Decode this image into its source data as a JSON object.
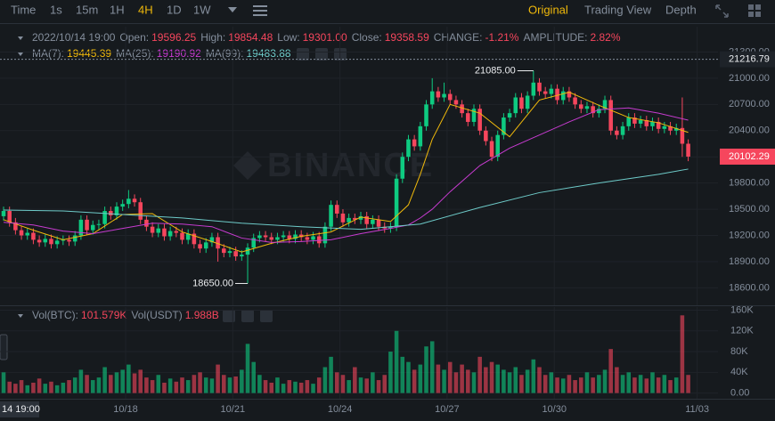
{
  "toolbar": {
    "intervals": [
      "Time",
      "1s",
      "15m",
      "1H",
      "4H",
      "1D",
      "1W"
    ],
    "active": "4H",
    "views": [
      "Original",
      "Trading View",
      "Depth"
    ],
    "active_view": "Original"
  },
  "watermark": "BINANCE",
  "crosshair_time": "14 19:00",
  "chart_data": [
    {
      "type": "candlestick",
      "legend": {
        "date": "2022/10/14 19:00",
        "value_color": "#f6465d",
        "items": [
          {
            "label": "Open:",
            "value": "19596.25"
          },
          {
            "label": "High:",
            "value": "19854.48"
          },
          {
            "label": "Low:",
            "value": "19301.00"
          },
          {
            "label": "Close:",
            "value": "19358.59"
          },
          {
            "label": "CHANGE:",
            "value": "-1.21%"
          },
          {
            "label": "AMPLITUDE:",
            "value": "2.82%"
          }
        ]
      },
      "up_color": "#0ecb81",
      "down_color": "#f6465d",
      "open": [
        19420,
        19480,
        19350,
        19260,
        19200,
        19230,
        19150,
        19120,
        19160,
        19100,
        19140,
        19150,
        19130,
        19200,
        19380,
        19260,
        19320,
        19330,
        19480,
        19430,
        19530,
        19560,
        19620,
        19580,
        19380,
        19300,
        19230,
        19280,
        19190,
        19250,
        19230,
        19150,
        19220,
        19100,
        19050,
        19120,
        19180,
        19050,
        19000,
        19020,
        18960,
        18980,
        19060,
        19170,
        19200,
        19180,
        19150,
        19180,
        19200,
        19160,
        19210,
        19180,
        19150,
        19190,
        19110,
        19300,
        19550,
        19450,
        19350,
        19400,
        19380,
        19420,
        19330,
        19380,
        19300,
        19280,
        19300,
        19850,
        20100,
        20300,
        20220,
        20450,
        20700,
        20850,
        20780,
        20820,
        20750,
        20700,
        20600,
        20500,
        20650,
        20400,
        20280,
        20100,
        20350,
        20550,
        20600,
        20780,
        20650,
        20800,
        20950,
        20850,
        20820,
        20880,
        20750,
        20850,
        20780,
        20700,
        20650,
        20680,
        20600,
        20650,
        20750,
        20400,
        20350,
        20450,
        20550,
        20480,
        20520,
        20450,
        20500,
        20420,
        20450,
        20400,
        20430,
        20250
      ],
      "high": [
        19530,
        19530,
        19400,
        19310,
        19280,
        19280,
        19200,
        19210,
        19210,
        19190,
        19200,
        19200,
        19250,
        19430,
        19430,
        19370,
        19380,
        19530,
        19530,
        19580,
        19610,
        19720,
        19670,
        19630,
        19430,
        19350,
        19330,
        19330,
        19300,
        19300,
        19280,
        19270,
        19270,
        19150,
        19170,
        19230,
        19230,
        19100,
        19070,
        19070,
        19030,
        19110,
        19220,
        19250,
        19250,
        19230,
        19230,
        19250,
        19250,
        19260,
        19260,
        19230,
        19240,
        19240,
        19350,
        19600,
        19600,
        19500,
        19450,
        19450,
        19470,
        19470,
        19430,
        19430,
        19350,
        19350,
        19900,
        20150,
        20350,
        20350,
        20500,
        20750,
        21000,
        20900,
        20950,
        20870,
        20800,
        20750,
        20650,
        20700,
        20700,
        20450,
        20330,
        20400,
        20600,
        20650,
        20830,
        20830,
        20850,
        21085,
        21000,
        20900,
        20930,
        20930,
        20900,
        20900,
        20830,
        20750,
        20730,
        20730,
        20700,
        20800,
        20800,
        20450,
        20500,
        20600,
        20600,
        20570,
        20570,
        20550,
        20550,
        20500,
        20500,
        20480,
        20780,
        20300
      ],
      "low": [
        19370,
        19300,
        19210,
        19150,
        19150,
        19100,
        19070,
        19070,
        19050,
        19050,
        19090,
        19080,
        19080,
        19150,
        19210,
        19210,
        19270,
        19280,
        19380,
        19380,
        19480,
        19510,
        19530,
        19330,
        19250,
        19180,
        19180,
        19140,
        19140,
        19180,
        19100,
        19100,
        19050,
        19000,
        19000,
        19070,
        18900,
        18950,
        18950,
        18910,
        18910,
        18650,
        19010,
        19120,
        19130,
        19100,
        19100,
        19130,
        19110,
        19110,
        19130,
        19100,
        19100,
        19060,
        19060,
        19250,
        19400,
        19300,
        19300,
        19330,
        19330,
        19280,
        19280,
        19250,
        19230,
        19230,
        19250,
        19800,
        20050,
        20170,
        20170,
        20400,
        20650,
        20730,
        20730,
        20700,
        20650,
        20550,
        20450,
        20450,
        20350,
        20230,
        20050,
        20050,
        20300,
        20500,
        20550,
        20600,
        20600,
        20750,
        20800,
        20770,
        20770,
        20700,
        20700,
        20730,
        20650,
        20600,
        20600,
        20550,
        20550,
        20600,
        20350,
        20300,
        20300,
        20400,
        20430,
        20430,
        20400,
        20400,
        20370,
        20370,
        20350,
        20350,
        20100,
        20050
      ],
      "close": [
        19480,
        19350,
        19260,
        19200,
        19230,
        19150,
        19120,
        19160,
        19100,
        19140,
        19150,
        19130,
        19200,
        19380,
        19260,
        19320,
        19330,
        19480,
        19430,
        19530,
        19560,
        19620,
        19580,
        19380,
        19300,
        19230,
        19280,
        19190,
        19250,
        19230,
        19150,
        19220,
        19100,
        19050,
        19120,
        19180,
        19050,
        19000,
        19020,
        18960,
        18980,
        19060,
        19170,
        19200,
        19180,
        19150,
        19180,
        19200,
        19160,
        19210,
        19180,
        19150,
        19190,
        19110,
        19300,
        19550,
        19450,
        19350,
        19400,
        19380,
        19420,
        19330,
        19380,
        19300,
        19280,
        19300,
        19850,
        20100,
        20300,
        20220,
        20450,
        20700,
        20850,
        20780,
        20820,
        20750,
        20700,
        20600,
        20500,
        20650,
        20400,
        20280,
        20100,
        20350,
        20550,
        20600,
        20780,
        20650,
        20800,
        20950,
        20850,
        20820,
        20880,
        20750,
        20850,
        20780,
        20700,
        20650,
        20680,
        20600,
        20650,
        20750,
        20400,
        20350,
        20450,
        20550,
        20480,
        20520,
        20450,
        20500,
        20420,
        20450,
        20400,
        20430,
        20250,
        20102.29
      ],
      "series": [
        {
          "name": "MA(7):",
          "legend_value": "19445.39",
          "color": "#f0b90b",
          "x": [
            0,
            5,
            10,
            15,
            20,
            25,
            30,
            35,
            40,
            45,
            50,
            55,
            60,
            65,
            68,
            70,
            72,
            75,
            80,
            85,
            90,
            95,
            100,
            105,
            110,
            115
          ],
          "values": [
            19380,
            19260,
            19150,
            19220,
            19440,
            19450,
            19240,
            19130,
            19010,
            19110,
            19190,
            19240,
            19410,
            19360,
            19550,
            19900,
            20300,
            20700,
            20600,
            20330,
            20750,
            20840,
            20690,
            20550,
            20490,
            20380
          ]
        },
        {
          "name": "MA(25):",
          "legend_value": "19190.92",
          "color": "#c73bd0",
          "x": [
            0,
            5,
            10,
            15,
            20,
            25,
            30,
            35,
            40,
            45,
            50,
            55,
            60,
            65,
            68,
            70,
            72,
            75,
            80,
            85,
            90,
            95,
            100,
            105,
            110,
            115
          ],
          "values": [
            19350,
            19320,
            19250,
            19220,
            19280,
            19340,
            19330,
            19300,
            19170,
            19120,
            19130,
            19150,
            19220,
            19280,
            19320,
            19400,
            19500,
            19700,
            20000,
            20200,
            20350,
            20500,
            20640,
            20660,
            20600,
            20520
          ]
        },
        {
          "name": "MA(99):",
          "legend_value": "19483.88",
          "color": "#6ecbc9",
          "x": [
            0,
            10,
            20,
            30,
            40,
            50,
            60,
            70,
            80,
            90,
            100,
            110,
            115
          ],
          "values": [
            19490,
            19480,
            19440,
            19400,
            19340,
            19300,
            19270,
            19330,
            19520,
            19690,
            19800,
            19900,
            19960
          ]
        }
      ],
      "high_label": "21085.00",
      "low_label": "18650.00",
      "price_line": {
        "value": 21216.79,
        "label": "21216.79"
      },
      "last_price_label": "20102.29",
      "xlim": [
        -0.6,
        120
      ],
      "xticks": [
        {
          "value": 20.5,
          "label": "10/18"
        },
        {
          "value": 38.5,
          "label": "10/21"
        },
        {
          "value": 56.5,
          "label": "10/24"
        },
        {
          "value": 74.5,
          "label": "10/27"
        },
        {
          "value": 92.5,
          "label": "10/30"
        },
        {
          "value": 116.5,
          "label": "11/03"
        }
      ],
      "ylim": [
        18400,
        21590
      ],
      "yticks": [
        {
          "value": 18600,
          "label": "18600.00"
        },
        {
          "value": 18900,
          "label": "18900.00"
        },
        {
          "value": 19200,
          "label": "19200.00"
        },
        {
          "value": 19500,
          "label": "19500.00"
        },
        {
          "value": 19800,
          "label": "19800.00"
        },
        {
          "value": 20100,
          "label": "20100.00"
        },
        {
          "value": 20400,
          "label": "20400.00"
        },
        {
          "value": 20700,
          "label": "20700.00"
        },
        {
          "value": 21000,
          "label": "21000.00"
        },
        {
          "value": 21300,
          "label": "21300.00"
        }
      ],
      "grid": true
    },
    {
      "type": "bar",
      "legend": {
        "items": [
          {
            "label": "Vol(BTC):",
            "value": "101.579K"
          },
          {
            "label": "Vol(USDT)",
            "value": "1.988B"
          }
        ],
        "value_color": "#f6465d"
      },
      "values": [
        40000,
        22000,
        18000,
        25000,
        15000,
        20000,
        28000,
        18000,
        22000,
        15000,
        20000,
        25000,
        30000,
        45000,
        35000,
        25000,
        30000,
        50000,
        35000,
        40000,
        45000,
        55000,
        38000,
        45000,
        30000,
        25000,
        35000,
        20000,
        28000,
        22000,
        30000,
        25000,
        35000,
        40000,
        30000,
        28000,
        55000,
        35000,
        30000,
        32000,
        45000,
        95000,
        60000,
        35000,
        25000,
        20000,
        30000,
        18000,
        25000,
        22000,
        20000,
        25000,
        18000,
        30000,
        50000,
        70000,
        40000,
        35000,
        25000,
        50000,
        30000,
        28000,
        40000,
        25000,
        35000,
        80000,
        120000,
        70000,
        60000,
        45000,
        55000,
        90000,
        100000,
        55000,
        45000,
        60000,
        40000,
        55000,
        45000,
        40000,
        70000,
        50000,
        60000,
        55000,
        45000,
        40000,
        50000,
        35000,
        45000,
        65000,
        50000,
        35000,
        40000,
        30000,
        28000,
        35000,
        25000,
        30000,
        40000,
        30000,
        35000,
        45000,
        85000,
        50000,
        35000,
        40000,
        30000,
        35000,
        28000,
        40000,
        30000,
        35000,
        25000,
        30000,
        150000,
        35000
      ],
      "xlim": [
        -0.6,
        120
      ],
      "ylim": [
        -11000,
        166000
      ],
      "yticks": [
        {
          "value": 0,
          "label": "0.00"
        },
        {
          "value": 40000,
          "label": "40K"
        },
        {
          "value": 80000,
          "label": "80K"
        },
        {
          "value": 120000,
          "label": "120K"
        },
        {
          "value": 160000,
          "label": "160K"
        }
      ],
      "grid": true
    }
  ]
}
